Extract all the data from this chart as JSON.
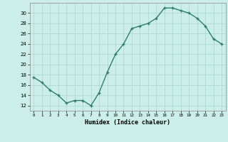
{
  "x": [
    0,
    1,
    2,
    3,
    4,
    5,
    6,
    7,
    8,
    9,
    10,
    11,
    12,
    13,
    14,
    15,
    16,
    17,
    18,
    19,
    20,
    21,
    22,
    23
  ],
  "y": [
    17.5,
    16.5,
    15.0,
    14.0,
    12.5,
    13.0,
    13.0,
    12.0,
    14.5,
    18.5,
    22.0,
    24.0,
    27.0,
    27.5,
    28.0,
    29.0,
    31.0,
    31.0,
    30.5,
    30.0,
    29.0,
    27.5,
    25.0,
    24.0
  ],
  "title": "",
  "xlabel": "Humidex (Indice chaleur)",
  "ylabel": "",
  "ylim": [
    11,
    32
  ],
  "yticks": [
    12,
    14,
    16,
    18,
    20,
    22,
    24,
    26,
    28,
    30
  ],
  "xticks": [
    0,
    1,
    2,
    3,
    4,
    5,
    6,
    7,
    8,
    9,
    10,
    11,
    12,
    13,
    14,
    15,
    16,
    17,
    18,
    19,
    20,
    21,
    22,
    23
  ],
  "line_color": "#2e7d6e",
  "bg_color": "#cceee8",
  "grid_color": "#aad4cc",
  "marker": "+",
  "linewidth": 1.0,
  "markersize": 3.5,
  "markeredgewidth": 1.0
}
